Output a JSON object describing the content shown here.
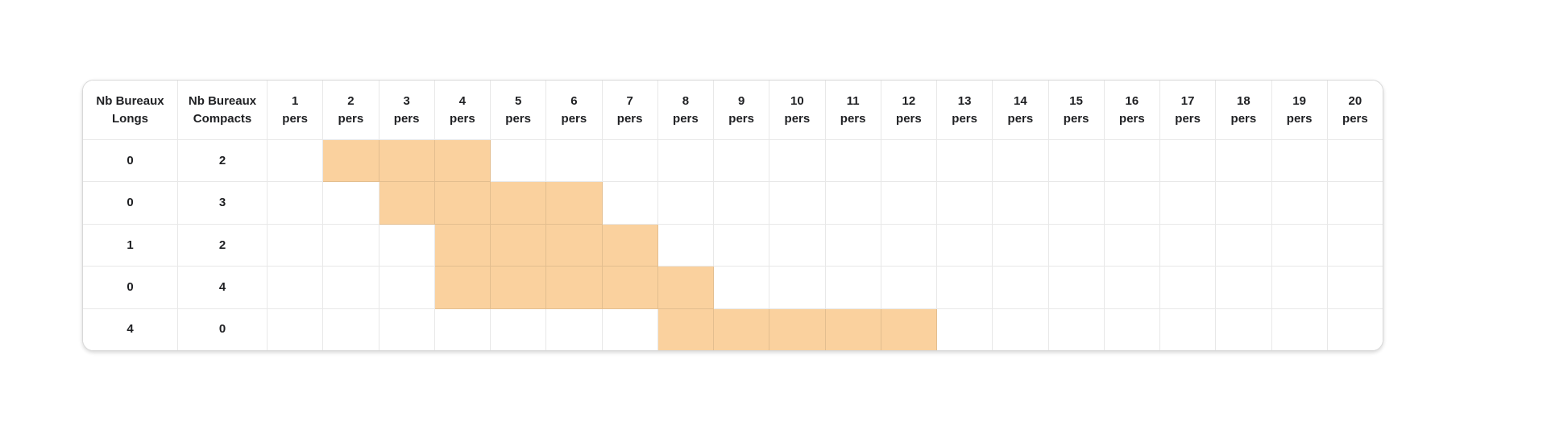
{
  "table": {
    "left_columns": [
      {
        "key": "longs",
        "line1": "Nb Bureaux",
        "line2": "Longs"
      },
      {
        "key": "compacts",
        "line1": "Nb Bureaux",
        "line2": "Compacts"
      }
    ],
    "person_columns": [
      {
        "num": "1",
        "unit": "pers"
      },
      {
        "num": "2",
        "unit": "pers"
      },
      {
        "num": "3",
        "unit": "pers"
      },
      {
        "num": "4",
        "unit": "pers"
      },
      {
        "num": "5",
        "unit": "pers"
      },
      {
        "num": "6",
        "unit": "pers"
      },
      {
        "num": "7",
        "unit": "pers"
      },
      {
        "num": "8",
        "unit": "pers"
      },
      {
        "num": "9",
        "unit": "pers"
      },
      {
        "num": "10",
        "unit": "pers"
      },
      {
        "num": "11",
        "unit": "pers"
      },
      {
        "num": "12",
        "unit": "pers"
      },
      {
        "num": "13",
        "unit": "pers"
      },
      {
        "num": "14",
        "unit": "pers"
      },
      {
        "num": "15",
        "unit": "pers"
      },
      {
        "num": "16",
        "unit": "pers"
      },
      {
        "num": "17",
        "unit": "pers"
      },
      {
        "num": "18",
        "unit": "pers"
      },
      {
        "num": "19",
        "unit": "pers"
      },
      {
        "num": "20",
        "unit": "pers"
      }
    ],
    "rows": [
      {
        "longs": "0",
        "compacts": "2",
        "highlight_min": 2,
        "highlight_max": 4
      },
      {
        "longs": "0",
        "compacts": "3",
        "highlight_min": 3,
        "highlight_max": 6
      },
      {
        "longs": "1",
        "compacts": "2",
        "highlight_min": 4,
        "highlight_max": 7
      },
      {
        "longs": "0",
        "compacts": "4",
        "highlight_min": 4,
        "highlight_max": 8
      },
      {
        "longs": "4",
        "compacts": "0",
        "highlight_min": 8,
        "highlight_max": 12
      }
    ]
  },
  "colors": {
    "highlight": "#FAD19E",
    "grid_line": "rgba(0,0,0,0.09)",
    "text": "#1F2023",
    "card_background": "#FFFFFF",
    "card_border": "#D8D8D8"
  }
}
